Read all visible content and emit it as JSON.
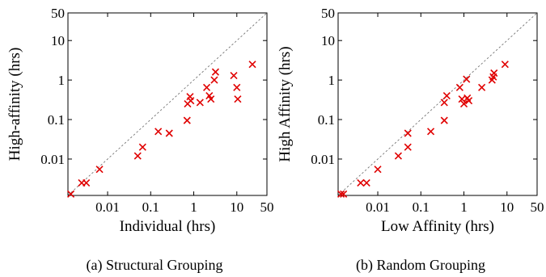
{
  "chart_data": [
    {
      "type": "scatter",
      "caption": "(a) Structural Grouping",
      "xlabel": "Individual (hrs)",
      "ylabel": "High-affinity (hrs)",
      "scale": "log",
      "xlim": [
        0.0012,
        50
      ],
      "ylim": [
        0.0012,
        50
      ],
      "xticks": [
        0.01,
        0.1,
        1,
        10,
        50
      ],
      "xtick_labels": [
        "0.01",
        "0.1",
        "1",
        "10",
        "50"
      ],
      "yticks": [
        0.01,
        0.1,
        1,
        10,
        50
      ],
      "ytick_labels": [
        "0.01",
        "0.1",
        "1",
        "10",
        "50"
      ],
      "diagonal": true,
      "marker": "x",
      "color": "#e00000",
      "points": [
        {
          "x": 0.0014,
          "y": 0.0013
        },
        {
          "x": 0.0025,
          "y": 0.0025
        },
        {
          "x": 0.0032,
          "y": 0.0025
        },
        {
          "x": 0.0065,
          "y": 0.0055
        },
        {
          "x": 0.05,
          "y": 0.012
        },
        {
          "x": 0.065,
          "y": 0.02
        },
        {
          "x": 0.15,
          "y": 0.05
        },
        {
          "x": 0.27,
          "y": 0.045
        },
        {
          "x": 0.7,
          "y": 0.095
        },
        {
          "x": 0.72,
          "y": 0.25
        },
        {
          "x": 0.82,
          "y": 0.38
        },
        {
          "x": 0.85,
          "y": 0.3
        },
        {
          "x": 1.4,
          "y": 0.27
        },
        {
          "x": 2.0,
          "y": 0.65
        },
        {
          "x": 2.3,
          "y": 0.4
        },
        {
          "x": 2.5,
          "y": 0.33
        },
        {
          "x": 3.0,
          "y": 1.0
        },
        {
          "x": 3.2,
          "y": 1.6
        },
        {
          "x": 8.5,
          "y": 1.3
        },
        {
          "x": 10.0,
          "y": 0.65
        },
        {
          "x": 10.5,
          "y": 0.33
        },
        {
          "x": 23.0,
          "y": 2.5
        }
      ]
    },
    {
      "type": "scatter",
      "caption": "(b) Random Grouping",
      "xlabel": "Low Affinity (hrs)",
      "ylabel": "High Affinity (hrs)",
      "scale": "log",
      "xlim": [
        0.0012,
        50
      ],
      "ylim": [
        0.0012,
        50
      ],
      "xticks": [
        0.01,
        0.1,
        1,
        10,
        50
      ],
      "xtick_labels": [
        "0.01",
        "0.1",
        "1",
        "10",
        "50"
      ],
      "yticks": [
        0.01,
        0.1,
        1,
        10,
        50
      ],
      "ytick_labels": [
        "0.01",
        "0.1",
        "1",
        "10",
        "50"
      ],
      "diagonal": true,
      "marker": "x",
      "color": "#e00000",
      "points": [
        {
          "x": 0.0014,
          "y": 0.0013
        },
        {
          "x": 0.0016,
          "y": 0.0013
        },
        {
          "x": 0.004,
          "y": 0.0025
        },
        {
          "x": 0.0055,
          "y": 0.0025
        },
        {
          "x": 0.01,
          "y": 0.0055
        },
        {
          "x": 0.03,
          "y": 0.012
        },
        {
          "x": 0.05,
          "y": 0.02
        },
        {
          "x": 0.05,
          "y": 0.045
        },
        {
          "x": 0.17,
          "y": 0.05
        },
        {
          "x": 0.35,
          "y": 0.095
        },
        {
          "x": 0.35,
          "y": 0.27
        },
        {
          "x": 0.4,
          "y": 0.4
        },
        {
          "x": 0.8,
          "y": 0.65
        },
        {
          "x": 0.9,
          "y": 0.33
        },
        {
          "x": 1.0,
          "y": 0.25
        },
        {
          "x": 1.15,
          "y": 1.05
        },
        {
          "x": 1.2,
          "y": 0.35
        },
        {
          "x": 1.3,
          "y": 0.3
        },
        {
          "x": 2.6,
          "y": 0.65
        },
        {
          "x": 4.5,
          "y": 1.0
        },
        {
          "x": 4.8,
          "y": 1.2
        },
        {
          "x": 5.0,
          "y": 1.5
        },
        {
          "x": 9.0,
          "y": 2.5
        }
      ]
    }
  ]
}
